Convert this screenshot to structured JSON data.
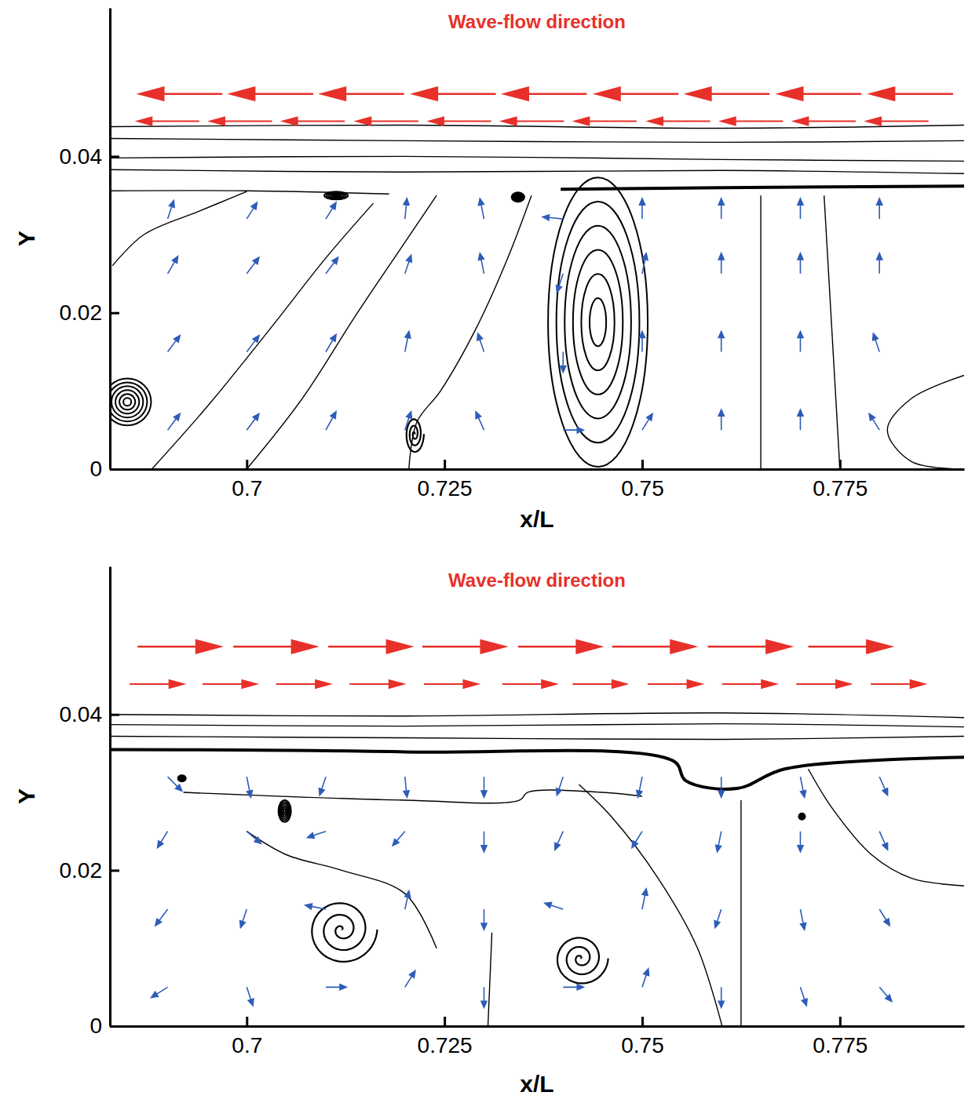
{
  "chart_data": [
    {
      "type": "vector",
      "title": "Wave-flow direction",
      "x_label": "x/L",
      "y_label": "Y",
      "xlim": [
        0.6827,
        0.7907
      ],
      "ylim": [
        0,
        0.059
      ],
      "xticks": [
        0.7,
        0.725,
        0.75,
        0.775
      ],
      "yticks": [
        0,
        0.02,
        0.04
      ],
      "color": "#000000",
      "flow_arrows": [
        {
          "color": "#e8302a",
          "y": 0.048,
          "x0": [
            0.6969,
            0.7084,
            0.7199,
            0.7315,
            0.743,
            0.7546,
            0.7661,
            0.7777,
            0.7893
          ],
          "x1": [
            0.6865,
            0.698,
            0.7095,
            0.7211,
            0.7326,
            0.7442,
            0.7557,
            0.7673,
            0.7789
          ]
        },
        {
          "color": "#e8302a",
          "y": 0.0445,
          "x0": [
            0.694,
            0.7032,
            0.7124,
            0.7217,
            0.7309,
            0.7401,
            0.7493,
            0.7586,
            0.7678,
            0.777,
            0.7862
          ],
          "x1": [
            0.6862,
            0.6954,
            0.7046,
            0.7139,
            0.7231,
            0.7323,
            0.7415,
            0.7508,
            0.76,
            0.7692,
            0.7784
          ]
        }
      ],
      "vortices": [
        {
          "marker": "rings",
          "x": 0.6849,
          "y": 0.0086,
          "rx": 0.003,
          "ry": 0.003
        },
        {
          "marker": "rings",
          "x": 0.7444,
          "y": 0.0188,
          "rx": 0.0063,
          "ry": 0.0185
        },
        {
          "marker": "spiral",
          "x": 0.7212,
          "y": 0.0045,
          "rx": 0.0012,
          "ry": 0.0025
        },
        {
          "marker": "rings",
          "x": 0.7113,
          "y": 0.035,
          "rx": 0.0015,
          "ry": 0.0005
        },
        {
          "marker": "rings",
          "x": 0.7343,
          "y": 0.0348,
          "rx": 0.0008,
          "ry": 0.0006
        }
      ],
      "streamlines": [
        {
          "x": [
            0.6827,
            0.72,
            0.76,
            0.7907
          ],
          "y": [
            0.0438,
            0.044,
            0.0436,
            0.044
          ]
        },
        {
          "x": [
            0.6827,
            0.72,
            0.76,
            0.7907
          ],
          "y": [
            0.0423,
            0.042,
            0.0418,
            0.042
          ]
        },
        {
          "x": [
            0.6827,
            0.72,
            0.76,
            0.7907
          ],
          "y": [
            0.0398,
            0.04,
            0.0396,
            0.0394
          ]
        },
        {
          "x": [
            0.6827,
            0.72,
            0.76,
            0.7907
          ],
          "y": [
            0.0383,
            0.038,
            0.0382,
            0.0378
          ]
        },
        {
          "x": [
            0.7397,
            0.76,
            0.7907
          ],
          "y": [
            0.0358,
            0.036,
            0.0362
          ],
          "line_style": "thick"
        },
        {
          "x": [
            0.6827,
            0.7,
            0.718
          ],
          "y": [
            0.0356,
            0.0356,
            0.0352
          ]
        },
        {
          "x": [
            0.688,
            0.695,
            0.703,
            0.71,
            0.716
          ],
          "y": [
            0.0,
            0.008,
            0.018,
            0.027,
            0.034
          ]
        },
        {
          "x": [
            0.7,
            0.707,
            0.714,
            0.72,
            0.724
          ],
          "y": [
            0.0,
            0.009,
            0.02,
            0.029,
            0.035
          ]
        },
        {
          "x": [
            0.7205,
            0.7215,
            0.7245,
            0.729,
            0.733,
            0.736
          ],
          "y": [
            0.0,
            0.006,
            0.01,
            0.018,
            0.027,
            0.035
          ]
        },
        {
          "x": [
            0.765,
            0.765
          ],
          "y": [
            0.0,
            0.035
          ]
        },
        {
          "x": [
            0.775,
            0.773
          ],
          "y": [
            0.0,
            0.035
          ]
        },
        {
          "x": [
            0.7907,
            0.784,
            0.781,
            0.784,
            0.7907
          ],
          "y": [
            0.012,
            0.009,
            0.005,
            0.001,
            0.0
          ]
        },
        {
          "x": [
            0.683,
            0.687,
            0.694,
            0.7
          ],
          "y": [
            0.026,
            0.03,
            0.033,
            0.0355
          ]
        }
      ],
      "vectors": {
        "color": "#2e5cb8",
        "x": [
          0.69,
          0.7,
          0.71,
          0.72,
          0.73,
          0.74,
          0.75,
          0.76,
          0.77,
          0.78,
          0.69,
          0.7,
          0.71,
          0.72,
          0.73,
          0.74,
          0.75,
          0.76,
          0.77,
          0.78,
          0.69,
          0.7,
          0.71,
          0.72,
          0.73,
          0.74,
          0.75,
          0.76,
          0.77,
          0.78,
          0.69,
          0.7,
          0.71,
          0.72,
          0.73,
          0.74,
          0.75,
          0.76,
          0.77,
          0.78
        ],
        "y": [
          0.005,
          0.005,
          0.005,
          0.005,
          0.005,
          0.005,
          0.005,
          0.005,
          0.005,
          0.005,
          0.015,
          0.015,
          0.015,
          0.015,
          0.015,
          0.015,
          0.015,
          0.015,
          0.015,
          0.015,
          0.025,
          0.025,
          0.025,
          0.025,
          0.025,
          0.025,
          0.025,
          0.025,
          0.025,
          0.025,
          0.032,
          0.032,
          0.032,
          0.032,
          0.032,
          0.032,
          0.032,
          0.032,
          0.032,
          0.032
        ],
        "u": [
          0.6,
          0.6,
          0.5,
          0.3,
          -0.4,
          1,
          0.5,
          0,
          0,
          -0.5,
          0.6,
          0.6,
          0.5,
          0.2,
          -0.3,
          0,
          0,
          0,
          0,
          -0.3,
          0.5,
          0.6,
          0.6,
          0.3,
          -0.2,
          -0.3,
          0.2,
          0,
          0,
          0,
          0.3,
          0.5,
          0.5,
          0.1,
          -0.2,
          -1,
          0,
          0,
          0,
          0
        ],
        "v": [
          0.8,
          0.8,
          0.9,
          0.9,
          0.9,
          0,
          0.8,
          1,
          1,
          0.8,
          0.8,
          0.8,
          0.85,
          1,
          0.9,
          -1,
          1,
          1,
          1,
          0.9,
          0.85,
          0.8,
          0.8,
          0.9,
          1,
          -0.9,
          1,
          1,
          1,
          1,
          0.9,
          0.8,
          0.8,
          1,
          1,
          0.1,
          1,
          1,
          1,
          1
        ]
      }
    },
    {
      "type": "vector",
      "title": "Wave-flow direction",
      "x_label": "x/L",
      "y_label": "Y",
      "xlim": [
        0.6827,
        0.7907
      ],
      "ylim": [
        0,
        0.059
      ],
      "xticks": [
        0.7,
        0.725,
        0.75,
        0.775
      ],
      "yticks": [
        0,
        0.02,
        0.04
      ],
      "color": "#000000",
      "flow_arrows": [
        {
          "color": "#e8302a",
          "y": 0.0487,
          "x0": [
            0.6862,
            0.6983,
            0.7103,
            0.7222,
            0.7343,
            0.7462,
            0.7583,
            0.771
          ],
          "x1": [
            0.6966,
            0.7087,
            0.7207,
            0.7326,
            0.7447,
            0.7566,
            0.7687,
            0.7814
          ]
        },
        {
          "color": "#e8302a",
          "y": 0.0439,
          "x0": [
            0.6852,
            0.6944,
            0.7037,
            0.713,
            0.7224,
            0.7323,
            0.7412,
            0.7507,
            0.7601,
            0.7695,
            0.7789
          ],
          "x1": [
            0.692,
            0.7012,
            0.7105,
            0.7198,
            0.7292,
            0.7391,
            0.748,
            0.7575,
            0.7669,
            0.7763,
            0.7857
          ]
        }
      ],
      "vortices": [
        {
          "marker": "spiral",
          "x": 0.712,
          "y": 0.0124,
          "rx": 0.0045,
          "ry": 0.0045
        },
        {
          "marker": "spiral",
          "x": 0.7422,
          "y": 0.0087,
          "rx": 0.0035,
          "ry": 0.0035
        },
        {
          "marker": "rings",
          "x": 0.7048,
          "y": 0.0276,
          "rx": 0.0008,
          "ry": 0.0014
        },
        {
          "marker": "rings",
          "x": 0.6918,
          "y": 0.0318,
          "rx": 0.0005,
          "ry": 0.0004
        },
        {
          "marker": "rings",
          "x": 0.7702,
          "y": 0.0269,
          "rx": 0.0004,
          "ry": 0.0004
        }
      ],
      "streamlines": [
        {
          "x": [
            0.6827,
            0.72,
            0.76,
            0.7907
          ],
          "y": [
            0.04,
            0.0398,
            0.0402,
            0.0396
          ]
        },
        {
          "x": [
            0.6827,
            0.72,
            0.76,
            0.7907
          ],
          "y": [
            0.0387,
            0.0385,
            0.0388,
            0.0384
          ]
        },
        {
          "x": [
            0.6827,
            0.72,
            0.76,
            0.7907
          ],
          "y": [
            0.0372,
            0.037,
            0.0368,
            0.0372
          ]
        },
        {
          "x": [
            0.6827,
            0.72,
            0.754,
            0.7555,
            0.762,
            0.768,
            0.7907
          ],
          "y": [
            0.0355,
            0.0352,
            0.034,
            0.0315,
            0.0305,
            0.033,
            0.0345
          ],
          "line_style": "thick"
        },
        {
          "x": [
            0.692,
            0.72,
            0.7345,
            0.7355,
            0.745,
            0.75
          ],
          "y": [
            0.03,
            0.029,
            0.029,
            0.03,
            0.03,
            0.0295
          ]
        },
        {
          "x": [
            0.7601,
            0.757,
            0.752,
            0.746,
            0.742
          ],
          "y": [
            0.0,
            0.01,
            0.019,
            0.027,
            0.031
          ]
        },
        {
          "x": [
            0.771,
            0.774,
            0.779,
            0.784,
            0.7907
          ],
          "y": [
            0.033,
            0.028,
            0.022,
            0.019,
            0.018
          ]
        },
        {
          "x": [
            0.7305,
            0.731
          ],
          "y": [
            0.0,
            0.012
          ]
        },
        {
          "x": [
            0.7625,
            0.7625
          ],
          "y": [
            0.0,
            0.029
          ]
        },
        {
          "x": [
            0.7,
            0.705,
            0.712,
            0.72,
            0.724
          ],
          "y": [
            0.025,
            0.022,
            0.02,
            0.017,
            0.01
          ]
        }
      ],
      "vectors": {
        "color": "#2e5cb8",
        "x": [
          0.69,
          0.7,
          0.71,
          0.72,
          0.73,
          0.74,
          0.75,
          0.76,
          0.77,
          0.78,
          0.69,
          0.7,
          0.71,
          0.72,
          0.73,
          0.74,
          0.75,
          0.76,
          0.77,
          0.78,
          0.69,
          0.7,
          0.71,
          0.72,
          0.73,
          0.74,
          0.75,
          0.76,
          0.77,
          0.78,
          0.69,
          0.7,
          0.71,
          0.72,
          0.73,
          0.74,
          0.75,
          0.76,
          0.77,
          0.78
        ],
        "y": [
          0.005,
          0.005,
          0.005,
          0.005,
          0.005,
          0.005,
          0.005,
          0.005,
          0.005,
          0.005,
          0.015,
          0.015,
          0.015,
          0.015,
          0.015,
          0.015,
          0.015,
          0.015,
          0.015,
          0.015,
          0.025,
          0.025,
          0.025,
          0.025,
          0.025,
          0.025,
          0.025,
          0.025,
          0.025,
          0.025,
          0.032,
          0.032,
          0.032,
          0.032,
          0.032,
          0.032,
          0.032,
          0.032,
          0.032,
          0.032
        ],
        "u": [
          -0.8,
          0.3,
          1,
          0.5,
          0,
          1,
          0.3,
          0,
          0.3,
          0.6,
          -0.6,
          -0.3,
          -1,
          0.2,
          0,
          -0.9,
          0.2,
          -0.3,
          0.2,
          0.5,
          -0.5,
          0.7,
          -0.9,
          -0.6,
          0,
          -0.4,
          -0.5,
          -0.2,
          0,
          0.4,
          0.7,
          0.2,
          -0.3,
          0.1,
          0,
          -0.3,
          -0.2,
          0,
          0.2,
          0.4
        ],
        "v": [
          -0.5,
          -0.9,
          0,
          0.8,
          -1,
          0,
          0.9,
          -1,
          -0.9,
          -0.7,
          -0.8,
          -0.9,
          0.2,
          0.9,
          -1,
          0.3,
          1,
          -0.9,
          -1,
          -0.8,
          -0.8,
          -0.6,
          -0.3,
          -0.7,
          -1,
          -0.9,
          -0.8,
          -1,
          -1,
          -0.9,
          -0.7,
          -1,
          -0.9,
          -1,
          -1,
          -0.9,
          -1,
          -1,
          -1,
          -0.9
        ]
      }
    }
  ]
}
